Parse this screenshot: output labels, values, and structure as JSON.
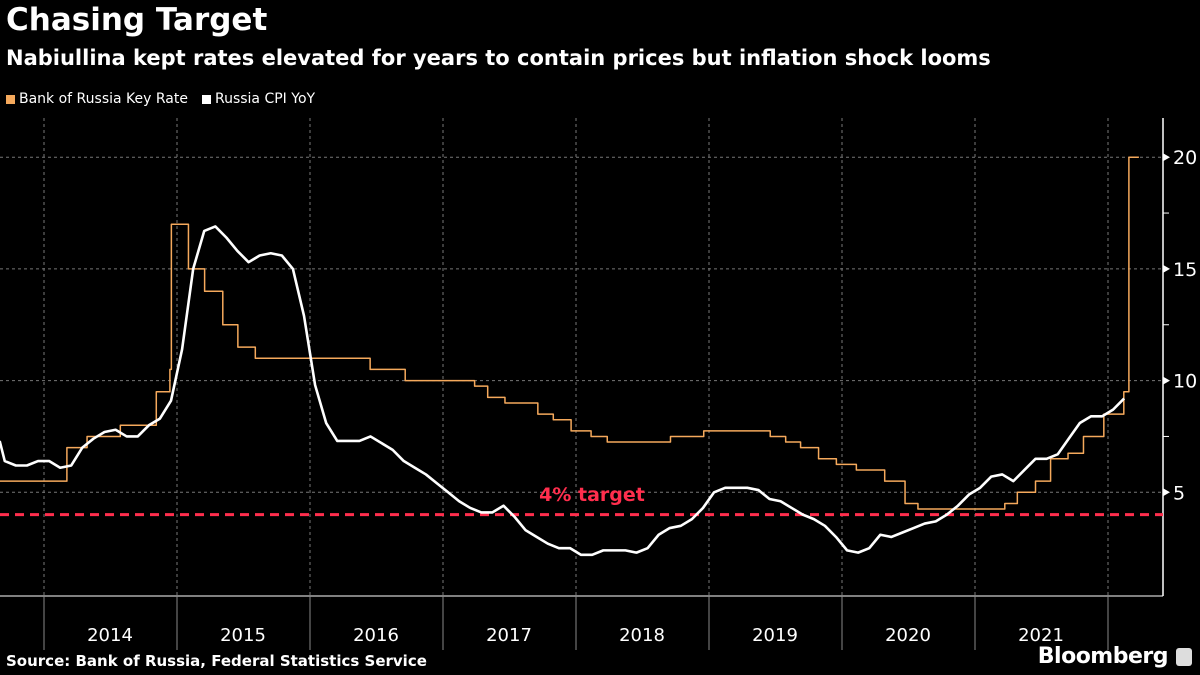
{
  "title": "Chasing Target",
  "subtitle": "Nabiullina kept rates elevated for years to contain prices but inflation shock looms",
  "source": "Source: Bank of Russia, Federal Statistics Service",
  "logo": "Bloomberg",
  "chart_data": {
    "type": "line",
    "legend_placement": "top-left",
    "grid": true,
    "ylim": [
      0.4,
      21.7
    ],
    "xlim": [
      "2013-09",
      "2022-05"
    ],
    "y_ticks": [
      5,
      10,
      15,
      20
    ],
    "y_axis_side": "right",
    "x_tick_labels": [
      "2014",
      "2015",
      "2016",
      "2017",
      "2018",
      "2019",
      "2020",
      "2021"
    ],
    "annotation": {
      "label": "4% target",
      "value": 4,
      "color": "#ff2e4d"
    },
    "series": [
      {
        "name": "Bank of Russia Key Rate",
        "color": "#f5a95c",
        "style": "step",
        "points": [
          [
            "2013-09-01",
            5.5
          ],
          [
            "2014-03-03",
            7.0
          ],
          [
            "2014-04-28",
            7.5
          ],
          [
            "2014-07-28",
            8.0
          ],
          [
            "2014-11-05",
            9.5
          ],
          [
            "2014-12-12",
            10.5
          ],
          [
            "2014-12-16",
            17.0
          ],
          [
            "2015-02-02",
            15.0
          ],
          [
            "2015-03-16",
            14.0
          ],
          [
            "2015-05-05",
            12.5
          ],
          [
            "2015-06-16",
            11.5
          ],
          [
            "2015-08-03",
            11.0
          ],
          [
            "2016-06-14",
            10.5
          ],
          [
            "2016-09-19",
            10.0
          ],
          [
            "2017-03-27",
            9.75
          ],
          [
            "2017-05-02",
            9.25
          ],
          [
            "2017-06-19",
            9.0
          ],
          [
            "2017-09-18",
            8.5
          ],
          [
            "2017-10-30",
            8.25
          ],
          [
            "2017-12-18",
            7.75
          ],
          [
            "2018-02-12",
            7.5
          ],
          [
            "2018-03-26",
            7.25
          ],
          [
            "2018-09-17",
            7.5
          ],
          [
            "2018-12-17",
            7.75
          ],
          [
            "2019-06-17",
            7.5
          ],
          [
            "2019-07-29",
            7.25
          ],
          [
            "2019-09-09",
            7.0
          ],
          [
            "2019-10-28",
            6.5
          ],
          [
            "2019-12-16",
            6.25
          ],
          [
            "2020-02-10",
            6.0
          ],
          [
            "2020-04-27",
            5.5
          ],
          [
            "2020-06-22",
            4.5
          ],
          [
            "2020-07-27",
            4.25
          ],
          [
            "2021-03-22",
            4.5
          ],
          [
            "2021-04-26",
            5.0
          ],
          [
            "2021-06-15",
            5.5
          ],
          [
            "2021-07-26",
            6.5
          ],
          [
            "2021-09-13",
            6.75
          ],
          [
            "2021-10-25",
            7.5
          ],
          [
            "2021-12-20",
            8.5
          ],
          [
            "2022-02-14",
            9.5
          ],
          [
            "2022-02-28",
            20.0
          ],
          [
            "2022-03-25",
            20.0
          ]
        ]
      },
      {
        "name": "Russia CPI YoY",
        "color": "#ffffff",
        "style": "line",
        "points": [
          [
            "2013-09-01",
            7.3
          ],
          [
            "2013-09-15",
            6.4
          ],
          [
            "2013-10-15",
            6.2
          ],
          [
            "2013-11-15",
            6.2
          ],
          [
            "2013-12-15",
            6.4
          ],
          [
            "2014-01-15",
            6.4
          ],
          [
            "2014-02-15",
            6.1
          ],
          [
            "2014-03-15",
            6.2
          ],
          [
            "2014-04-15",
            7.0
          ],
          [
            "2014-05-15",
            7.4
          ],
          [
            "2014-06-15",
            7.7
          ],
          [
            "2014-07-15",
            7.8
          ],
          [
            "2014-08-15",
            7.5
          ],
          [
            "2014-09-15",
            7.5
          ],
          [
            "2014-10-15",
            8.0
          ],
          [
            "2014-11-15",
            8.3
          ],
          [
            "2014-12-15",
            9.1
          ],
          [
            "2015-01-15",
            11.4
          ],
          [
            "2015-02-15",
            15.0
          ],
          [
            "2015-03-15",
            16.7
          ],
          [
            "2015-04-15",
            16.9
          ],
          [
            "2015-05-15",
            16.4
          ],
          [
            "2015-06-15",
            15.8
          ],
          [
            "2015-07-15",
            15.3
          ],
          [
            "2015-08-15",
            15.6
          ],
          [
            "2015-09-15",
            15.7
          ],
          [
            "2015-10-15",
            15.6
          ],
          [
            "2015-11-15",
            15.0
          ],
          [
            "2015-12-15",
            12.9
          ],
          [
            "2016-01-15",
            9.8
          ],
          [
            "2016-02-15",
            8.1
          ],
          [
            "2016-03-15",
            7.3
          ],
          [
            "2016-04-15",
            7.3
          ],
          [
            "2016-05-15",
            7.3
          ],
          [
            "2016-06-15",
            7.5
          ],
          [
            "2016-07-15",
            7.2
          ],
          [
            "2016-08-15",
            6.9
          ],
          [
            "2016-09-15",
            6.4
          ],
          [
            "2016-10-15",
            6.1
          ],
          [
            "2016-11-15",
            5.8
          ],
          [
            "2016-12-15",
            5.4
          ],
          [
            "2017-01-15",
            5.0
          ],
          [
            "2017-02-15",
            4.6
          ],
          [
            "2017-03-15",
            4.3
          ],
          [
            "2017-04-15",
            4.1
          ],
          [
            "2017-05-15",
            4.1
          ],
          [
            "2017-06-15",
            4.4
          ],
          [
            "2017-07-15",
            3.9
          ],
          [
            "2017-08-15",
            3.3
          ],
          [
            "2017-09-15",
            3.0
          ],
          [
            "2017-10-15",
            2.7
          ],
          [
            "2017-11-15",
            2.5
          ],
          [
            "2017-12-15",
            2.5
          ],
          [
            "2018-01-15",
            2.2
          ],
          [
            "2018-02-15",
            2.2
          ],
          [
            "2018-03-15",
            2.4
          ],
          [
            "2018-04-15",
            2.4
          ],
          [
            "2018-05-15",
            2.4
          ],
          [
            "2018-06-15",
            2.3
          ],
          [
            "2018-07-15",
            2.5
          ],
          [
            "2018-08-15",
            3.1
          ],
          [
            "2018-09-15",
            3.4
          ],
          [
            "2018-10-15",
            3.5
          ],
          [
            "2018-11-15",
            3.8
          ],
          [
            "2018-12-15",
            4.3
          ],
          [
            "2019-01-15",
            5.0
          ],
          [
            "2019-02-15",
            5.2
          ],
          [
            "2019-03-15",
            5.2
          ],
          [
            "2019-04-15",
            5.2
          ],
          [
            "2019-05-15",
            5.1
          ],
          [
            "2019-06-15",
            4.7
          ],
          [
            "2019-07-15",
            4.6
          ],
          [
            "2019-08-15",
            4.3
          ],
          [
            "2019-09-15",
            4.0
          ],
          [
            "2019-10-15",
            3.8
          ],
          [
            "2019-11-15",
            3.5
          ],
          [
            "2019-12-15",
            3.0
          ],
          [
            "2020-01-15",
            2.4
          ],
          [
            "2020-02-15",
            2.3
          ],
          [
            "2020-03-15",
            2.5
          ],
          [
            "2020-04-15",
            3.1
          ],
          [
            "2020-05-15",
            3.0
          ],
          [
            "2020-06-15",
            3.2
          ],
          [
            "2020-07-15",
            3.4
          ],
          [
            "2020-08-15",
            3.6
          ],
          [
            "2020-09-15",
            3.7
          ],
          [
            "2020-10-15",
            4.0
          ],
          [
            "2020-11-15",
            4.4
          ],
          [
            "2020-12-15",
            4.9
          ],
          [
            "2021-01-15",
            5.2
          ],
          [
            "2021-02-15",
            5.7
          ],
          [
            "2021-03-15",
            5.8
          ],
          [
            "2021-04-15",
            5.5
          ],
          [
            "2021-05-15",
            6.0
          ],
          [
            "2021-06-15",
            6.5
          ],
          [
            "2021-07-15",
            6.5
          ],
          [
            "2021-08-15",
            6.7
          ],
          [
            "2021-09-15",
            7.4
          ],
          [
            "2021-10-15",
            8.1
          ],
          [
            "2021-11-15",
            8.4
          ],
          [
            "2021-12-15",
            8.4
          ],
          [
            "2022-01-15",
            8.7
          ],
          [
            "2022-02-15",
            9.2
          ]
        ]
      }
    ]
  }
}
